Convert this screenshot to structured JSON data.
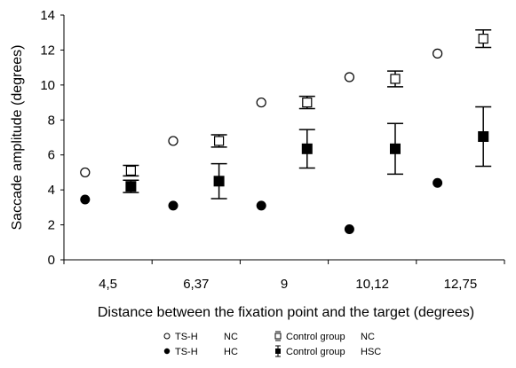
{
  "chart_data": {
    "type": "scatter",
    "title": "",
    "xlabel": "Distance between the fixation point and the target (degrees)",
    "ylabel": "Saccade amplitude (degrees)",
    "ylim": [
      0,
      14
    ],
    "yticks": [
      "0",
      "2",
      "4",
      "6",
      "8",
      "10",
      "12",
      "14"
    ],
    "categories": [
      "4,5",
      "6,37",
      "9",
      "10,12",
      "12,75"
    ],
    "grid": false,
    "legend_position": "bottom-center",
    "series": [
      {
        "name": "TS-H NC",
        "legend_left": "TS-H",
        "legend_right": "NC",
        "marker": "open-circle",
        "values": [
          5.0,
          6.8,
          9.0,
          10.45,
          11.8
        ]
      },
      {
        "name": "Control group NC",
        "legend_left": "Control group",
        "legend_right": "NC",
        "marker": "open-square",
        "values": [
          5.1,
          6.8,
          9.0,
          10.35,
          12.65
        ],
        "error": [
          0.3,
          0.35,
          0.35,
          0.45,
          0.5
        ]
      },
      {
        "name": "TS-H HC",
        "legend_left": "TS-H",
        "legend_right": "HC",
        "marker": "filled-circle",
        "values": [
          3.45,
          3.1,
          3.1,
          1.75,
          4.4
        ]
      },
      {
        "name": "Control group HSC",
        "legend_left": "Control group",
        "legend_right": "HSC",
        "marker": "filled-square",
        "values": [
          4.2,
          4.5,
          6.35,
          6.35,
          7.05
        ],
        "error": [
          0.35,
          1.0,
          1.1,
          1.45,
          1.7
        ]
      }
    ]
  }
}
